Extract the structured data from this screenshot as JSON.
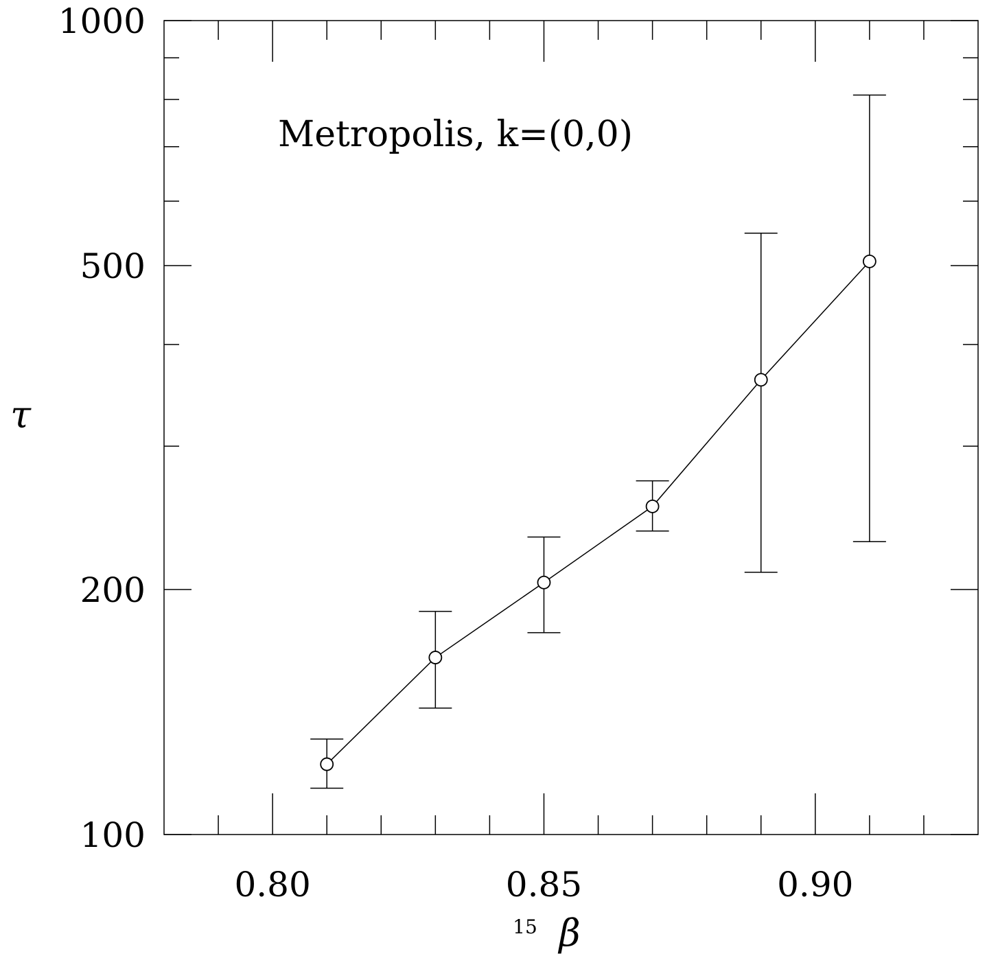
{
  "page_number": "15",
  "chart_data": {
    "type": "line",
    "title": "",
    "annotation": "Metropolis, k=(0,0)",
    "xlabel": "β",
    "ylabel": "τ",
    "xlim": [
      0.78,
      0.93
    ],
    "ylim": [
      100,
      1000
    ],
    "yscale": "log",
    "x_ticks": [
      {
        "value": 0.8,
        "label": "0.80"
      },
      {
        "value": 0.85,
        "label": "0.85"
      },
      {
        "value": 0.9,
        "label": "0.90"
      }
    ],
    "y_ticks": [
      {
        "value": 100,
        "label": "100"
      },
      {
        "value": 200,
        "label": "200"
      },
      {
        "value": 500,
        "label": "500"
      },
      {
        "value": 1000,
        "label": "1000"
      }
    ],
    "grid": false,
    "series": [
      {
        "marker": "open-circle",
        "points": [
          {
            "x": 0.81,
            "y": 122,
            "y_low": 114,
            "y_high": 131
          },
          {
            "x": 0.83,
            "y": 165,
            "y_low": 143,
            "y_high": 188
          },
          {
            "x": 0.85,
            "y": 204,
            "y_low": 177,
            "y_high": 232
          },
          {
            "x": 0.87,
            "y": 253,
            "y_low": 236,
            "y_high": 272
          },
          {
            "x": 0.89,
            "y": 362,
            "y_low": 210,
            "y_high": 548
          },
          {
            "x": 0.91,
            "y": 506,
            "y_low": 229,
            "y_high": 810
          }
        ]
      }
    ]
  }
}
